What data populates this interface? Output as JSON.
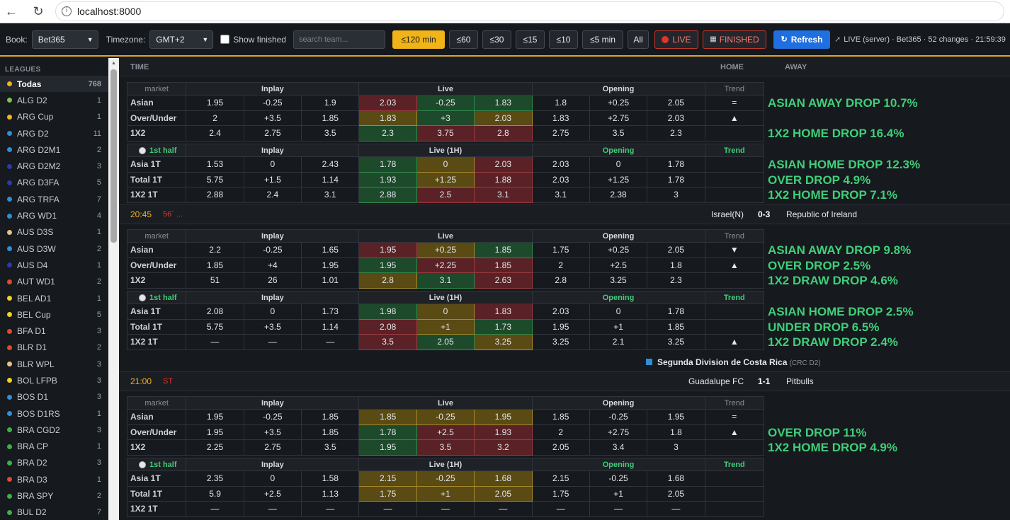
{
  "browser": {
    "url": "localhost:8000"
  },
  "toolbar": {
    "book_label": "Book:",
    "book_value": "Bet365",
    "tz_label": "Timezone:",
    "tz_value": "GMT+2",
    "show_finished": "Show finished",
    "search_placeholder": "search team...",
    "filters": [
      "≤120 min",
      "≤60",
      "≤30",
      "≤15",
      "≤10",
      "≤5 min",
      "All"
    ],
    "live_label": "LIVE",
    "finished_label": "FINISHED",
    "refresh_label": "Refresh",
    "status": "LIVE (server) · Bet365 · 52 changes · 21:59:39"
  },
  "sidebar": {
    "heading": "LEAGUES",
    "items": [
      {
        "label": "Todas",
        "count": "768",
        "color": "#f0b419"
      },
      {
        "label": "ALG D2",
        "count": "1",
        "color": "#7fc34b"
      },
      {
        "label": "ARG Cup",
        "count": "1",
        "color": "#f0b419"
      },
      {
        "label": "ARG D2",
        "count": "11",
        "color": "#2d8fd8"
      },
      {
        "label": "ARG D2M1",
        "count": "2",
        "color": "#2d8fd8"
      },
      {
        "label": "ARG D2M2",
        "count": "3",
        "color": "#2d3aa8"
      },
      {
        "label": "ARG D3FA",
        "count": "5",
        "color": "#2d3aa8"
      },
      {
        "label": "ARG TRFA",
        "count": "7",
        "color": "#2d8fd8"
      },
      {
        "label": "ARG WD1",
        "count": "4",
        "color": "#2d8fd8"
      },
      {
        "label": "AUS D3S",
        "count": "1",
        "color": "#e6c288"
      },
      {
        "label": "AUS D3W",
        "count": "2",
        "color": "#2d8fd8"
      },
      {
        "label": "AUS D4",
        "count": "1",
        "color": "#2d3aa8"
      },
      {
        "label": "AUT WD1",
        "count": "2",
        "color": "#e04a2a"
      },
      {
        "label": "BEL AD1",
        "count": "1",
        "color": "#f0d419"
      },
      {
        "label": "BEL Cup",
        "count": "5",
        "color": "#f0d419"
      },
      {
        "label": "BFA D1",
        "count": "3",
        "color": "#e04a2a"
      },
      {
        "label": "BLR D1",
        "count": "2",
        "color": "#e04a2a"
      },
      {
        "label": "BLR WPL",
        "count": "3",
        "color": "#e6c288"
      },
      {
        "label": "BOL LFPB",
        "count": "3",
        "color": "#f0d419"
      },
      {
        "label": "BOS D1",
        "count": "3",
        "color": "#2d8fd8"
      },
      {
        "label": "BOS D1RS",
        "count": "1",
        "color": "#2d8fd8"
      },
      {
        "label": "BRA CGD2",
        "count": "3",
        "color": "#3fae4a"
      },
      {
        "label": "BRA CP",
        "count": "1",
        "color": "#3fae4a"
      },
      {
        "label": "BRA D2",
        "count": "3",
        "color": "#3fae4a"
      },
      {
        "label": "BRA D3",
        "count": "1",
        "color": "#e04a2a"
      },
      {
        "label": "BRA SPY",
        "count": "2",
        "color": "#3fae4a"
      },
      {
        "label": "BUL D2",
        "count": "7",
        "color": "#3fae4a"
      }
    ]
  },
  "columns": {
    "time": "TIME",
    "home": "HOME",
    "away": "AWAY"
  },
  "labels": {
    "market": "market",
    "inplay": "Inplay",
    "live": "Live",
    "live1h": "Live (1H)",
    "opening": "Opening",
    "trend": "Trend",
    "first_half": "1st half"
  },
  "matches": [
    {
      "ft": [
        {
          "name": "Asian",
          "inplay": [
            "1.95",
            "-0.25",
            "1.9"
          ],
          "live": [
            "2.03",
            "-0.25",
            "1.83"
          ],
          "lc": [
            "r",
            "g",
            "g"
          ],
          "open": [
            "1.8",
            "+0.25",
            "2.05"
          ],
          "trend": "="
        },
        {
          "name": "Over/Under",
          "inplay": [
            "2",
            "+3.5",
            "1.85"
          ],
          "live": [
            "1.83",
            "+3",
            "2.03"
          ],
          "lc": [
            "y",
            "g",
            "y"
          ],
          "open": [
            "1.83",
            "+2.75",
            "2.03"
          ],
          "trend": "▲"
        },
        {
          "name": "1X2",
          "inplay": [
            "2.4",
            "2.75",
            "3.5"
          ],
          "live": [
            "2.3",
            "3.75",
            "2.8"
          ],
          "lc": [
            "g",
            "r",
            "r"
          ],
          "open": [
            "2.75",
            "3.5",
            "2.3"
          ],
          "trend": ""
        }
      ],
      "ht": [
        {
          "name": "Asia 1T",
          "inplay": [
            "1.53",
            "0",
            "2.43"
          ],
          "live": [
            "1.78",
            "0",
            "2.03"
          ],
          "lc": [
            "g",
            "y",
            "r"
          ],
          "open": [
            "2.03",
            "0",
            "1.78"
          ],
          "trend": ""
        },
        {
          "name": "Total 1T",
          "inplay": [
            "5.75",
            "+1.5",
            "1.14"
          ],
          "live": [
            "1.93",
            "+1.25",
            "1.88"
          ],
          "lc": [
            "g",
            "y",
            "r"
          ],
          "open": [
            "2.03",
            "+1.25",
            "1.78"
          ],
          "trend": ""
        },
        {
          "name": "1X2 1T",
          "inplay": [
            "2.88",
            "2.4",
            "3.1"
          ],
          "live": [
            "2.88",
            "2.5",
            "3.1"
          ],
          "lc": [
            "g",
            "r",
            "r"
          ],
          "open": [
            "3.1",
            "2.38",
            "3"
          ],
          "trend": ""
        }
      ],
      "alerts_ft": [
        "ASIAN AWAY DROP 10.7%",
        "",
        "1X2 HOME DROP 16.4%"
      ],
      "alerts_ht": [
        "ASIAN HOME DROP 12.3%",
        "OVER DROP 4.9%",
        "1X2 HOME DROP 7.1%"
      ]
    },
    {
      "time": "20:45",
      "minute": "56´ ...",
      "home": "Israel(N)",
      "score": "0-3",
      "away": "Republic of Ireland",
      "ft": [
        {
          "name": "Asian",
          "inplay": [
            "2.2",
            "-0.25",
            "1.65"
          ],
          "live": [
            "1.95",
            "+0.25",
            "1.85"
          ],
          "lc": [
            "r",
            "y",
            "g"
          ],
          "open": [
            "1.75",
            "+0.25",
            "2.05"
          ],
          "trend": "▼"
        },
        {
          "name": "Over/Under",
          "inplay": [
            "1.85",
            "+4",
            "1.95"
          ],
          "live": [
            "1.95",
            "+2.25",
            "1.85"
          ],
          "lc": [
            "g",
            "r",
            "r"
          ],
          "open": [
            "2",
            "+2.5",
            "1.8"
          ],
          "trend": "▲"
        },
        {
          "name": "1X2",
          "inplay": [
            "51",
            "26",
            "1.01"
          ],
          "live": [
            "2.8",
            "3.1",
            "2.63"
          ],
          "lc": [
            "y",
            "g",
            "r"
          ],
          "open": [
            "2.8",
            "3.25",
            "2.3"
          ],
          "trend": ""
        }
      ],
      "ht": [
        {
          "name": "Asia 1T",
          "inplay": [
            "2.08",
            "0",
            "1.73"
          ],
          "live": [
            "1.98",
            "0",
            "1.83"
          ],
          "lc": [
            "g",
            "y",
            "r"
          ],
          "open": [
            "2.03",
            "0",
            "1.78"
          ],
          "trend": ""
        },
        {
          "name": "Total 1T",
          "inplay": [
            "5.75",
            "+3.5",
            "1.14"
          ],
          "live": [
            "2.08",
            "+1",
            "1.73"
          ],
          "lc": [
            "r",
            "y",
            "g"
          ],
          "open": [
            "1.95",
            "+1",
            "1.85"
          ],
          "trend": ""
        },
        {
          "name": "1X2 1T",
          "inplay": [
            "—",
            "—",
            "—"
          ],
          "live": [
            "3.5",
            "2.05",
            "3.25"
          ],
          "lc": [
            "r",
            "g",
            "y"
          ],
          "open": [
            "3.25",
            "2.1",
            "3.25"
          ],
          "trend": "▲"
        }
      ],
      "alerts_ft": [
        "ASIAN AWAY DROP 9.8%",
        "OVER DROP 2.5%",
        "1X2 DRAW DROP 4.6%"
      ],
      "alerts_ht": [
        "ASIAN HOME DROP 2.5%",
        "UNDER DROP 6.5%",
        "1X2 DRAW DROP 2.4%"
      ]
    },
    {
      "league": "Segunda Division de Costa Rica",
      "league_code": "(CRC D2)",
      "time": "21:00",
      "minute": "ST",
      "home": "Guadalupe FC",
      "score": "1-1",
      "away": "Pitbulls",
      "ft": [
        {
          "name": "Asian",
          "inplay": [
            "1.95",
            "-0.25",
            "1.85"
          ],
          "live": [
            "1.85",
            "-0.25",
            "1.95"
          ],
          "lc": [
            "y",
            "y",
            "y"
          ],
          "open": [
            "1.85",
            "-0.25",
            "1.95"
          ],
          "trend": "="
        },
        {
          "name": "Over/Under",
          "inplay": [
            "1.95",
            "+3.5",
            "1.85"
          ],
          "live": [
            "1.78",
            "+2.5",
            "1.93"
          ],
          "lc": [
            "g",
            "r",
            "r"
          ],
          "open": [
            "2",
            "+2.75",
            "1.8"
          ],
          "trend": "▲"
        },
        {
          "name": "1X2",
          "inplay": [
            "2.25",
            "2.75",
            "3.5"
          ],
          "live": [
            "1.95",
            "3.5",
            "3.2"
          ],
          "lc": [
            "g",
            "r",
            "r"
          ],
          "open": [
            "2.05",
            "3.4",
            "3"
          ],
          "trend": ""
        }
      ],
      "ht": [
        {
          "name": "Asia 1T",
          "inplay": [
            "2.35",
            "0",
            "1.58"
          ],
          "live": [
            "2.15",
            "-0.25",
            "1.68"
          ],
          "lc": [
            "y",
            "y",
            "y"
          ],
          "open": [
            "2.15",
            "-0.25",
            "1.68"
          ],
          "trend": ""
        },
        {
          "name": "Total 1T",
          "inplay": [
            "5.9",
            "+2.5",
            "1.13"
          ],
          "live": [
            "1.75",
            "+1",
            "2.05"
          ],
          "lc": [
            "y",
            "y",
            "y"
          ],
          "open": [
            "1.75",
            "+1",
            "2.05"
          ],
          "trend": ""
        },
        {
          "name": "1X2 1T",
          "inplay": [
            "—",
            "—",
            "—"
          ],
          "live": [
            "—",
            "—",
            "—"
          ],
          "lc": [
            "",
            "",
            ""
          ],
          "open": [
            "—",
            "—",
            "—"
          ],
          "trend": ""
        }
      ],
      "alerts_ft": [
        "",
        "OVER DROP 11%",
        "1X2 HOME DROP 4.9%"
      ],
      "alerts_ht": [
        "",
        "",
        ""
      ]
    }
  ]
}
